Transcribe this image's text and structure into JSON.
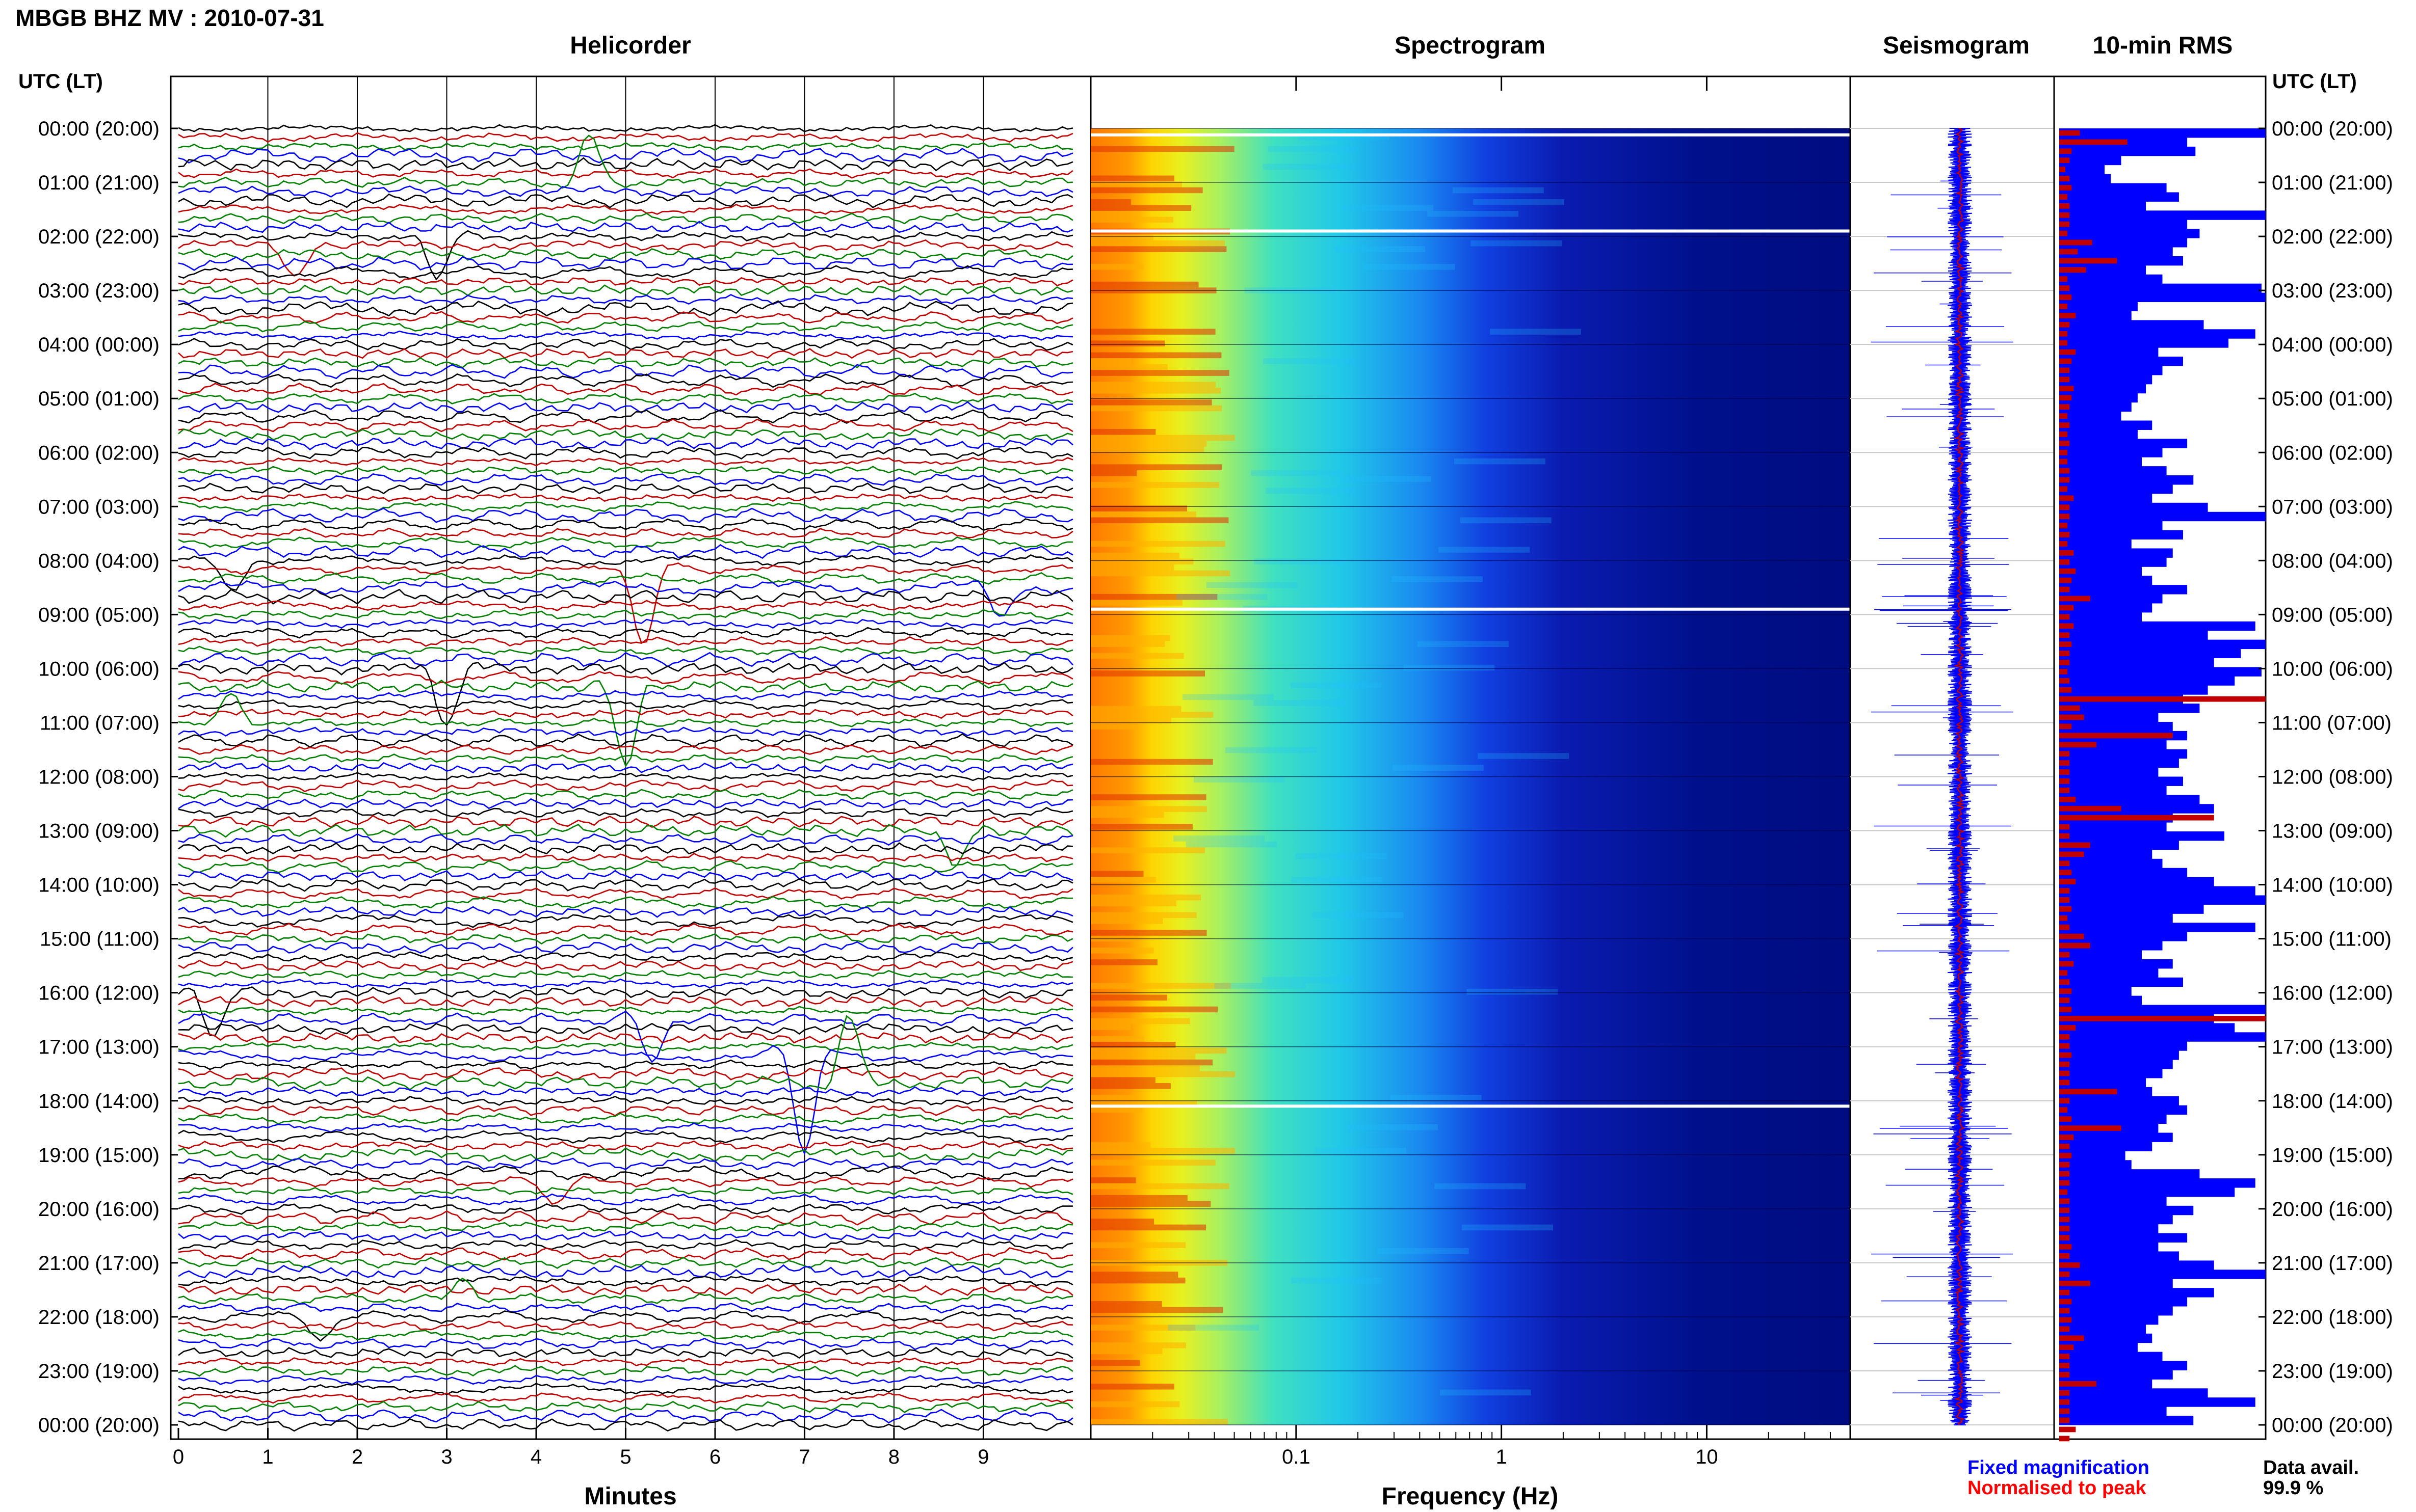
{
  "page": {
    "title": "MBGB BHZ MV : 2010-07-31"
  },
  "colors": {
    "black": "#000000",
    "red": "#c00000",
    "green": "#008000",
    "blue": "#0000ff",
    "rms_fixed": "#0000ff",
    "rms_norm": "#ff0000",
    "spec_low": "#00008b",
    "spec_high": "#ff4000"
  },
  "chart_data": [
    {
      "type": "line",
      "title": "Helicorder",
      "xlabel": "Minutes",
      "ylabel": "UTC (LT)",
      "xlim": [
        0,
        10
      ],
      "x_ticks": [
        "0",
        "1",
        "2",
        "3",
        "4",
        "5",
        "6",
        "7",
        "8",
        "9"
      ],
      "y_ticks": [
        "00:00 (20:00)",
        "01:00 (21:00)",
        "02:00 (22:00)",
        "03:00 (23:00)",
        "04:00 (00:00)",
        "05:00 (01:00)",
        "06:00 (02:00)",
        "07:00 (03:00)",
        "08:00 (04:00)",
        "09:00 (05:00)",
        "10:00 (06:00)",
        "11:00 (07:00)",
        "12:00 (08:00)",
        "13:00 (09:00)",
        "14:00 (10:00)",
        "15:00 (11:00)",
        "16:00 (12:00)",
        "17:00 (13:00)",
        "18:00 (14:00)",
        "19:00 (15:00)",
        "20:00 (16:00)",
        "21:00 (17:00)",
        "22:00 (18:00)",
        "23:00 (19:00)",
        "00:00 (20:00)"
      ],
      "traces_per_hour": 6,
      "trace_colors": [
        "black",
        "red",
        "green",
        "blue"
      ],
      "grid": true
    },
    {
      "type": "heatmap",
      "title": "Spectrogram",
      "xlabel": "Frequency (Hz)",
      "x_scale": "log",
      "xlim": [
        0.01,
        50
      ],
      "x_tick_labels": [
        "0.1",
        "1",
        "10"
      ],
      "x_tick_values": [
        0.1,
        1,
        10
      ],
      "data_gaps_utc_hours": [
        0.12,
        1.9,
        8.9,
        18.1
      ]
    },
    {
      "type": "line",
      "title": "Seismogram",
      "series": [
        {
          "name": "Fixed magnification",
          "color": "blue"
        },
        {
          "name": "Normalised to peak",
          "color": "red"
        }
      ]
    },
    {
      "type": "bar",
      "title": "10-min RMS",
      "orientation": "horizontal",
      "ylabel": "UTC (LT)",
      "y_ticks": [
        "00:00 (20:00)",
        "01:00 (21:00)",
        "02:00 (22:00)",
        "03:00 (23:00)",
        "04:00 (00:00)",
        "05:00 (01:00)",
        "06:00 (02:00)",
        "07:00 (03:00)",
        "08:00 (04:00)",
        "09:00 (05:00)",
        "10:00 (06:00)",
        "11:00 (07:00)",
        "12:00 (08:00)",
        "13:00 (09:00)",
        "14:00 (10:00)",
        "15:00 (11:00)",
        "16:00 (12:00)",
        "17:00 (13:00)",
        "18:00 (14:00)",
        "19:00 (15:00)",
        "20:00 (16:00)",
        "21:00 (17:00)",
        "22:00 (18:00)",
        "23:00 (19:00)",
        "00:00 (20:00)"
      ],
      "series": [
        {
          "name": "Fixed magnification",
          "color": "blue",
          "values": [
            1.0,
            0.62,
            0.66,
            0.3,
            0.22,
            0.25,
            0.52,
            0.58,
            0.42,
            1.0,
            0.62,
            0.68,
            0.62,
            0.55,
            0.6,
            0.42,
            0.5,
            0.98,
            1.0,
            0.38,
            0.35,
            0.7,
            0.95,
            0.82,
            0.48,
            0.6,
            0.5,
            0.45,
            0.42,
            0.38,
            0.35,
            0.3,
            0.45,
            0.38,
            0.62,
            0.5,
            0.4,
            0.52,
            0.65,
            0.55,
            0.45,
            0.72,
            1.0,
            0.5,
            0.6,
            0.35,
            0.55,
            0.52,
            0.4,
            0.45,
            0.62,
            0.5,
            0.45,
            0.4,
            0.95,
            0.72,
            1.0,
            0.88,
            0.75,
            0.98,
            0.85,
            0.72,
            0.6,
            0.68,
            0.48,
            0.55,
            0.62,
            0.52,
            0.62,
            0.58,
            0.48,
            0.6,
            0.52,
            0.68,
            0.75,
            0.55,
            0.52,
            0.8,
            0.58,
            0.45,
            0.5,
            0.62,
            0.75,
            0.95,
            1.0,
            0.7,
            0.55,
            0.95,
            0.62,
            0.5,
            0.4,
            0.55,
            0.48,
            0.6,
            0.35,
            0.4,
            1.0,
            0.75,
            0.85,
            1.0,
            0.62,
            0.58,
            0.55,
            0.5,
            0.42,
            0.45,
            0.58,
            0.62,
            0.52,
            0.48,
            0.55,
            0.45,
            0.32,
            0.35,
            0.68,
            0.95,
            0.85,
            0.52,
            0.65,
            0.55,
            0.48,
            0.62,
            0.48,
            0.58,
            0.75,
            1.0,
            0.55,
            0.75,
            0.62,
            0.55,
            0.48,
            0.42,
            0.45,
            0.38,
            0.5,
            0.62,
            0.55,
            0.45,
            0.72,
            0.95,
            0.52,
            0.65
          ]
        },
        {
          "name": "Normalised to peak",
          "color": "red",
          "values": [
            0.1,
            0.33,
            0.06,
            0.05,
            0.03,
            0.05,
            0.06,
            0.04,
            0.05,
            0.05,
            0.05,
            0.04,
            0.16,
            0.09,
            0.28,
            0.13,
            0.04,
            0.05,
            0.06,
            0.04,
            0.08,
            0.05,
            0.04,
            0.04,
            0.08,
            0.06,
            0.05,
            0.05,
            0.07,
            0.06,
            0.05,
            0.04,
            0.05,
            0.04,
            0.05,
            0.04,
            0.04,
            0.05,
            0.05,
            0.04,
            0.07,
            0.05,
            0.05,
            0.04,
            0.05,
            0.04,
            0.07,
            0.05,
            0.08,
            0.06,
            0.05,
            0.15,
            0.07,
            0.05,
            0.07,
            0.05,
            0.06,
            0.05,
            0.05,
            0.04,
            0.05,
            0.06,
            1.0,
            0.1,
            0.12,
            0.06,
            0.55,
            0.18,
            0.05,
            0.05,
            0.05,
            0.05,
            0.05,
            0.08,
            0.3,
            0.75,
            0.05,
            0.05,
            0.15,
            0.12,
            0.05,
            0.06,
            0.08,
            0.05,
            0.05,
            0.06,
            0.04,
            0.05,
            0.12,
            0.15,
            0.05,
            0.07,
            0.04,
            0.05,
            0.06,
            0.05,
            0.06,
            1.0,
            0.08,
            0.05,
            0.05,
            0.06,
            0.05,
            0.05,
            0.05,
            0.28,
            0.05,
            0.04,
            0.06,
            0.3,
            0.07,
            0.05,
            0.06,
            0.05,
            0.05,
            0.05,
            0.04,
            0.05,
            0.05,
            0.05,
            0.05,
            0.05,
            0.06,
            0.05,
            0.1,
            0.05,
            0.15,
            0.05,
            0.06,
            0.05,
            0.06,
            0.05,
            0.12,
            0.07,
            0.05,
            0.05,
            0.05,
            0.18,
            0.05,
            0.05,
            0.05,
            0.05,
            0.08,
            0.05
          ]
        }
      ]
    }
  ],
  "footer": {
    "data_avail_label": "Data avail.",
    "data_avail_value": "99.9 %"
  }
}
